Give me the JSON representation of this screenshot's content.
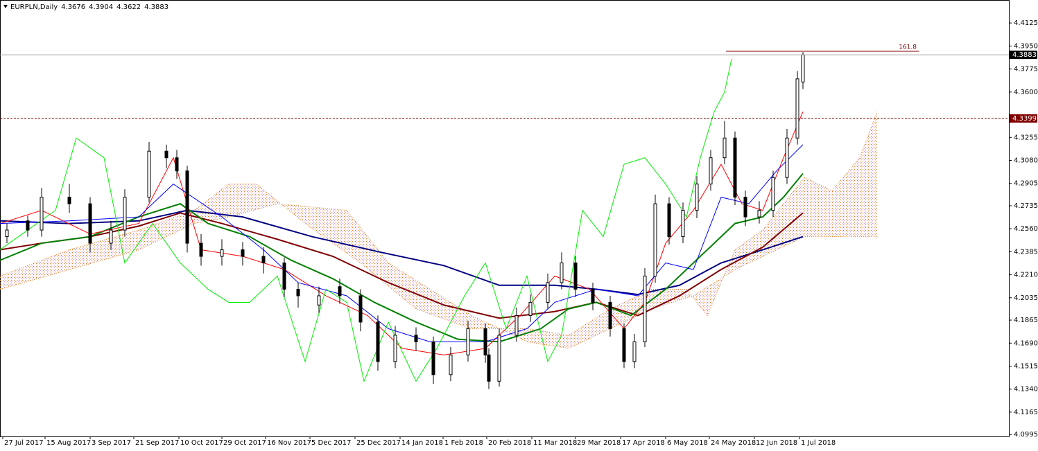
{
  "chart_data": {
    "type": "candlestick",
    "symbol": "EURPLN,Daily",
    "quote": [
      4.3676,
      4.3904,
      4.3622,
      4.3883
    ],
    "ylim": [
      4.098,
      4.43
    ],
    "yticks": [
      4.4125,
      {
        "value": 4.395,
        "label": "4.3950"
      },
      4.3775,
      {
        "value": 4.36,
        "label": "4.3600"
      },
      4.3255,
      {
        "value": 4.308,
        "label": "4.3080"
      },
      4.2905,
      4.2735,
      {
        "value": 4.256,
        "label": "4.2560"
      },
      4.2385,
      {
        "value": 4.221,
        "label": "4.2210"
      },
      4.2035,
      4.1865,
      {
        "value": 4.169,
        "label": "4.1690"
      },
      4.1515,
      {
        "value": 4.134,
        "label": "4.1340"
      },
      4.1165,
      4.0995
    ],
    "xlim": [
      0,
      291
    ],
    "xticks": [
      {
        "value": 0.8,
        "label": "27 Jul 2017"
      },
      {
        "value": 13,
        "label": "15 Aug 2017"
      },
      {
        "value": 26,
        "label": "3 Sep 2017"
      },
      {
        "value": 38.6,
        "label": "21 Sep 2017"
      },
      {
        "value": 51.6,
        "label": "10 Oct 2017"
      },
      {
        "value": 64,
        "label": "29 Oct 2017"
      },
      {
        "value": 76.6,
        "label": "16 Nov 2017"
      },
      {
        "value": 89.4,
        "label": "5 Dec 2017"
      },
      {
        "value": 102.4,
        "label": "25 Dec 2017"
      },
      {
        "value": 115.4,
        "label": "14 Jan 2018"
      },
      {
        "value": 127.8,
        "label": "1 Feb 2018"
      },
      {
        "value": 140.4,
        "label": "20 Feb 2018"
      },
      {
        "value": 153.4,
        "label": "11 Mar 2018"
      },
      {
        "value": 166,
        "label": "29 Mar 2018"
      },
      {
        "value": 179,
        "label": "17 Apr 2018"
      },
      {
        "value": 192,
        "label": "6 May 2018"
      },
      {
        "value": 204.6,
        "label": "24 May 2018"
      },
      {
        "value": 217.6,
        "label": "12 Jun 2018"
      },
      {
        "value": 230.6,
        "label": "1 Jul 2018"
      }
    ],
    "level": 4.3399,
    "level_color": "#800000",
    "fib": {
      "level": 161.8,
      "price": 4.391,
      "x": [
        209.4,
        265
      ],
      "color": "#800000"
    },
    "candles": {
      "x": [
        2,
        8,
        12,
        20,
        26,
        32,
        36,
        43,
        48,
        51,
        54,
        58,
        64,
        70,
        76,
        82,
        86,
        92,
        98,
        104,
        109,
        114,
        120,
        125,
        130,
        135,
        140,
        141,
        144,
        149,
        153,
        158,
        162,
        166,
        171,
        176,
        180,
        183,
        186,
        189,
        193,
        197,
        201,
        205,
        209,
        212,
        215,
        219,
        223,
        227,
        230,
        231.6
      ],
      "open": [
        4.25,
        4.262,
        4.255,
        4.28,
        4.275,
        4.245,
        4.255,
        4.28,
        4.315,
        4.31,
        4.3,
        4.245,
        4.235,
        4.24,
        4.235,
        4.23,
        4.21,
        4.198,
        4.212,
        4.205,
        4.185,
        4.155,
        4.175,
        4.17,
        4.145,
        4.16,
        4.18,
        4.16,
        4.14,
        4.175,
        4.19,
        4.2,
        4.215,
        4.23,
        4.21,
        4.2,
        4.18,
        4.155,
        4.17,
        4.22,
        4.275,
        4.25,
        4.27,
        4.29,
        4.31,
        4.325,
        4.28,
        4.265,
        4.27,
        4.295,
        4.325,
        4.3676
      ],
      "high": [
        4.26,
        4.266,
        4.287,
        4.29,
        4.28,
        4.262,
        4.286,
        4.322,
        4.32,
        4.316,
        4.304,
        4.252,
        4.248,
        4.246,
        4.242,
        4.234,
        4.215,
        4.212,
        4.218,
        4.21,
        4.19,
        4.182,
        4.181,
        4.174,
        4.166,
        4.186,
        4.184,
        4.165,
        4.18,
        4.196,
        4.206,
        4.222,
        4.238,
        4.235,
        4.215,
        4.205,
        4.184,
        4.176,
        4.226,
        4.282,
        4.28,
        4.276,
        4.296,
        4.316,
        4.338,
        4.33,
        4.285,
        4.277,
        4.3,
        4.332,
        4.376,
        4.3904
      ],
      "low": [
        4.245,
        4.25,
        4.25,
        4.268,
        4.238,
        4.24,
        4.25,
        4.276,
        4.302,
        4.294,
        4.238,
        4.228,
        4.228,
        4.228,
        4.222,
        4.204,
        4.196,
        4.192,
        4.199,
        4.178,
        4.148,
        4.15,
        4.163,
        4.138,
        4.14,
        4.155,
        4.154,
        4.134,
        4.136,
        4.17,
        4.185,
        4.195,
        4.21,
        4.204,
        4.194,
        4.174,
        4.15,
        4.15,
        4.166,
        4.215,
        4.244,
        4.245,
        4.264,
        4.285,
        4.305,
        4.274,
        4.258,
        4.26,
        4.265,
        4.29,
        4.32,
        4.3622
      ],
      "close": [
        4.255,
        4.255,
        4.28,
        4.275,
        4.245,
        4.255,
        4.28,
        4.315,
        4.31,
        4.3,
        4.245,
        4.235,
        4.24,
        4.235,
        4.23,
        4.21,
        4.205,
        4.205,
        4.205,
        4.185,
        4.155,
        4.175,
        4.17,
        4.145,
        4.16,
        4.18,
        4.16,
        4.14,
        4.175,
        4.19,
        4.2,
        4.215,
        4.23,
        4.21,
        4.2,
        4.18,
        4.155,
        4.17,
        4.22,
        4.275,
        4.25,
        4.27,
        4.29,
        4.31,
        4.325,
        4.28,
        4.265,
        4.27,
        4.295,
        4.325,
        4.37,
        4.3883
      ]
    },
    "cloud": {
      "color": "#e07a20",
      "span_a": {
        "x": [
          0,
          20,
          40,
          56,
          66,
          74,
          88,
          104,
          120,
          136,
          152,
          164,
          176,
          188,
          198,
          204,
          212,
          220,
          232,
          240,
          248,
          253
        ],
        "values": [
          4.22,
          4.24,
          4.255,
          4.27,
          4.29,
          4.29,
          4.26,
          4.23,
          4.195,
          4.18,
          4.18,
          4.175,
          4.195,
          4.21,
          4.21,
          4.19,
          4.24,
          4.255,
          4.295,
          4.285,
          4.31,
          4.345
        ]
      },
      "span_b": {
        "x": [
          0,
          20,
          40,
          56,
          66,
          80,
          100,
          112,
          124,
          136,
          152,
          164,
          176,
          188,
          200,
          212,
          224,
          232,
          242,
          253
        ],
        "values": [
          4.21,
          4.225,
          4.24,
          4.26,
          4.265,
          4.275,
          4.27,
          4.23,
          4.21,
          4.19,
          4.17,
          4.165,
          4.18,
          4.195,
          4.205,
          4.225,
          4.24,
          4.25,
          4.25,
          4.25
        ]
      }
    },
    "series": [
      {
        "color": "#000080",
        "x": [
          0,
          20,
          40,
          54,
          70,
          90,
          110,
          128,
          144,
          160,
          172,
          184,
          196,
          208,
          220,
          231.6
        ],
        "values": [
          4.262,
          4.26,
          4.262,
          4.27,
          4.265,
          4.25,
          4.238,
          4.228,
          4.213,
          4.213,
          4.21,
          4.206,
          4.213,
          4.23,
          4.24,
          4.25
        ]
      },
      {
        "color": "#800000",
        "x": [
          0,
          12,
          26,
          40,
          52,
          64,
          80,
          96,
          112,
          128,
          144,
          160,
          172,
          184,
          196,
          208,
          220,
          231.6
        ],
        "values": [
          4.24,
          4.245,
          4.25,
          4.258,
          4.268,
          4.26,
          4.248,
          4.235,
          4.215,
          4.198,
          4.188,
          4.193,
          4.2,
          4.19,
          4.205,
          4.225,
          4.242,
          4.268
        ]
      },
      {
        "color": "#008000",
        "x": [
          0,
          12,
          26,
          40,
          52,
          60,
          72,
          84,
          96,
          108,
          120,
          132,
          144,
          156,
          164,
          172,
          182,
          192,
          202,
          212,
          220,
          226,
          231.6
        ],
        "values": [
          4.232,
          4.245,
          4.25,
          4.265,
          4.275,
          4.26,
          4.25,
          4.232,
          4.218,
          4.2,
          4.185,
          4.172,
          4.17,
          4.18,
          4.195,
          4.2,
          4.19,
          4.21,
          4.235,
          4.26,
          4.265,
          4.28,
          4.298
        ]
      },
      {
        "color": "#ff0000",
        "x": [
          0,
          12,
          26,
          40,
          50,
          58,
          70,
          82,
          94,
          106,
          116,
          128,
          140,
          150,
          160,
          170,
          180,
          186,
          192,
          200,
          208,
          214,
          220,
          226,
          231.6
        ],
        "values": [
          4.26,
          4.27,
          4.252,
          4.26,
          4.31,
          4.24,
          4.235,
          4.225,
          4.205,
          4.19,
          4.165,
          4.16,
          4.165,
          4.19,
          4.22,
          4.21,
          4.18,
          4.2,
          4.245,
          4.27,
          4.305,
          4.275,
          4.27,
          4.31,
          4.345
        ]
      },
      {
        "color": "#0000ff",
        "x": [
          0,
          20,
          40,
          50,
          64,
          76,
          86,
          100,
          112,
          124,
          140,
          152,
          160,
          172,
          184,
          192,
          200,
          208,
          216,
          224,
          231.6
        ],
        "values": [
          4.26,
          4.262,
          4.265,
          4.29,
          4.265,
          4.24,
          4.215,
          4.205,
          4.18,
          4.17,
          4.17,
          4.18,
          4.2,
          4.21,
          4.205,
          4.23,
          4.225,
          4.28,
          4.275,
          4.3,
          4.32
        ]
      },
      {
        "color": "#00ee00",
        "x": [
          0,
          8,
          16,
          22,
          30,
          36,
          44,
          52,
          60,
          66,
          72,
          80,
          88,
          94,
          100,
          105,
          112,
          120,
          126,
          134,
          140,
          146,
          152,
          158,
          162,
          168,
          174,
          180,
          186,
          192,
          198,
          202,
          206,
          209,
          211
        ],
        "values": [
          4.24,
          4.255,
          4.27,
          4.325,
          4.31,
          4.23,
          4.26,
          4.23,
          4.21,
          4.2,
          4.2,
          4.22,
          4.155,
          4.21,
          4.2,
          4.14,
          4.185,
          4.14,
          4.165,
          4.205,
          4.23,
          4.18,
          4.22,
          4.155,
          4.175,
          4.27,
          4.25,
          4.305,
          4.31,
          4.29,
          4.265,
          4.31,
          4.345,
          4.36,
          4.385
        ]
      }
    ]
  }
}
